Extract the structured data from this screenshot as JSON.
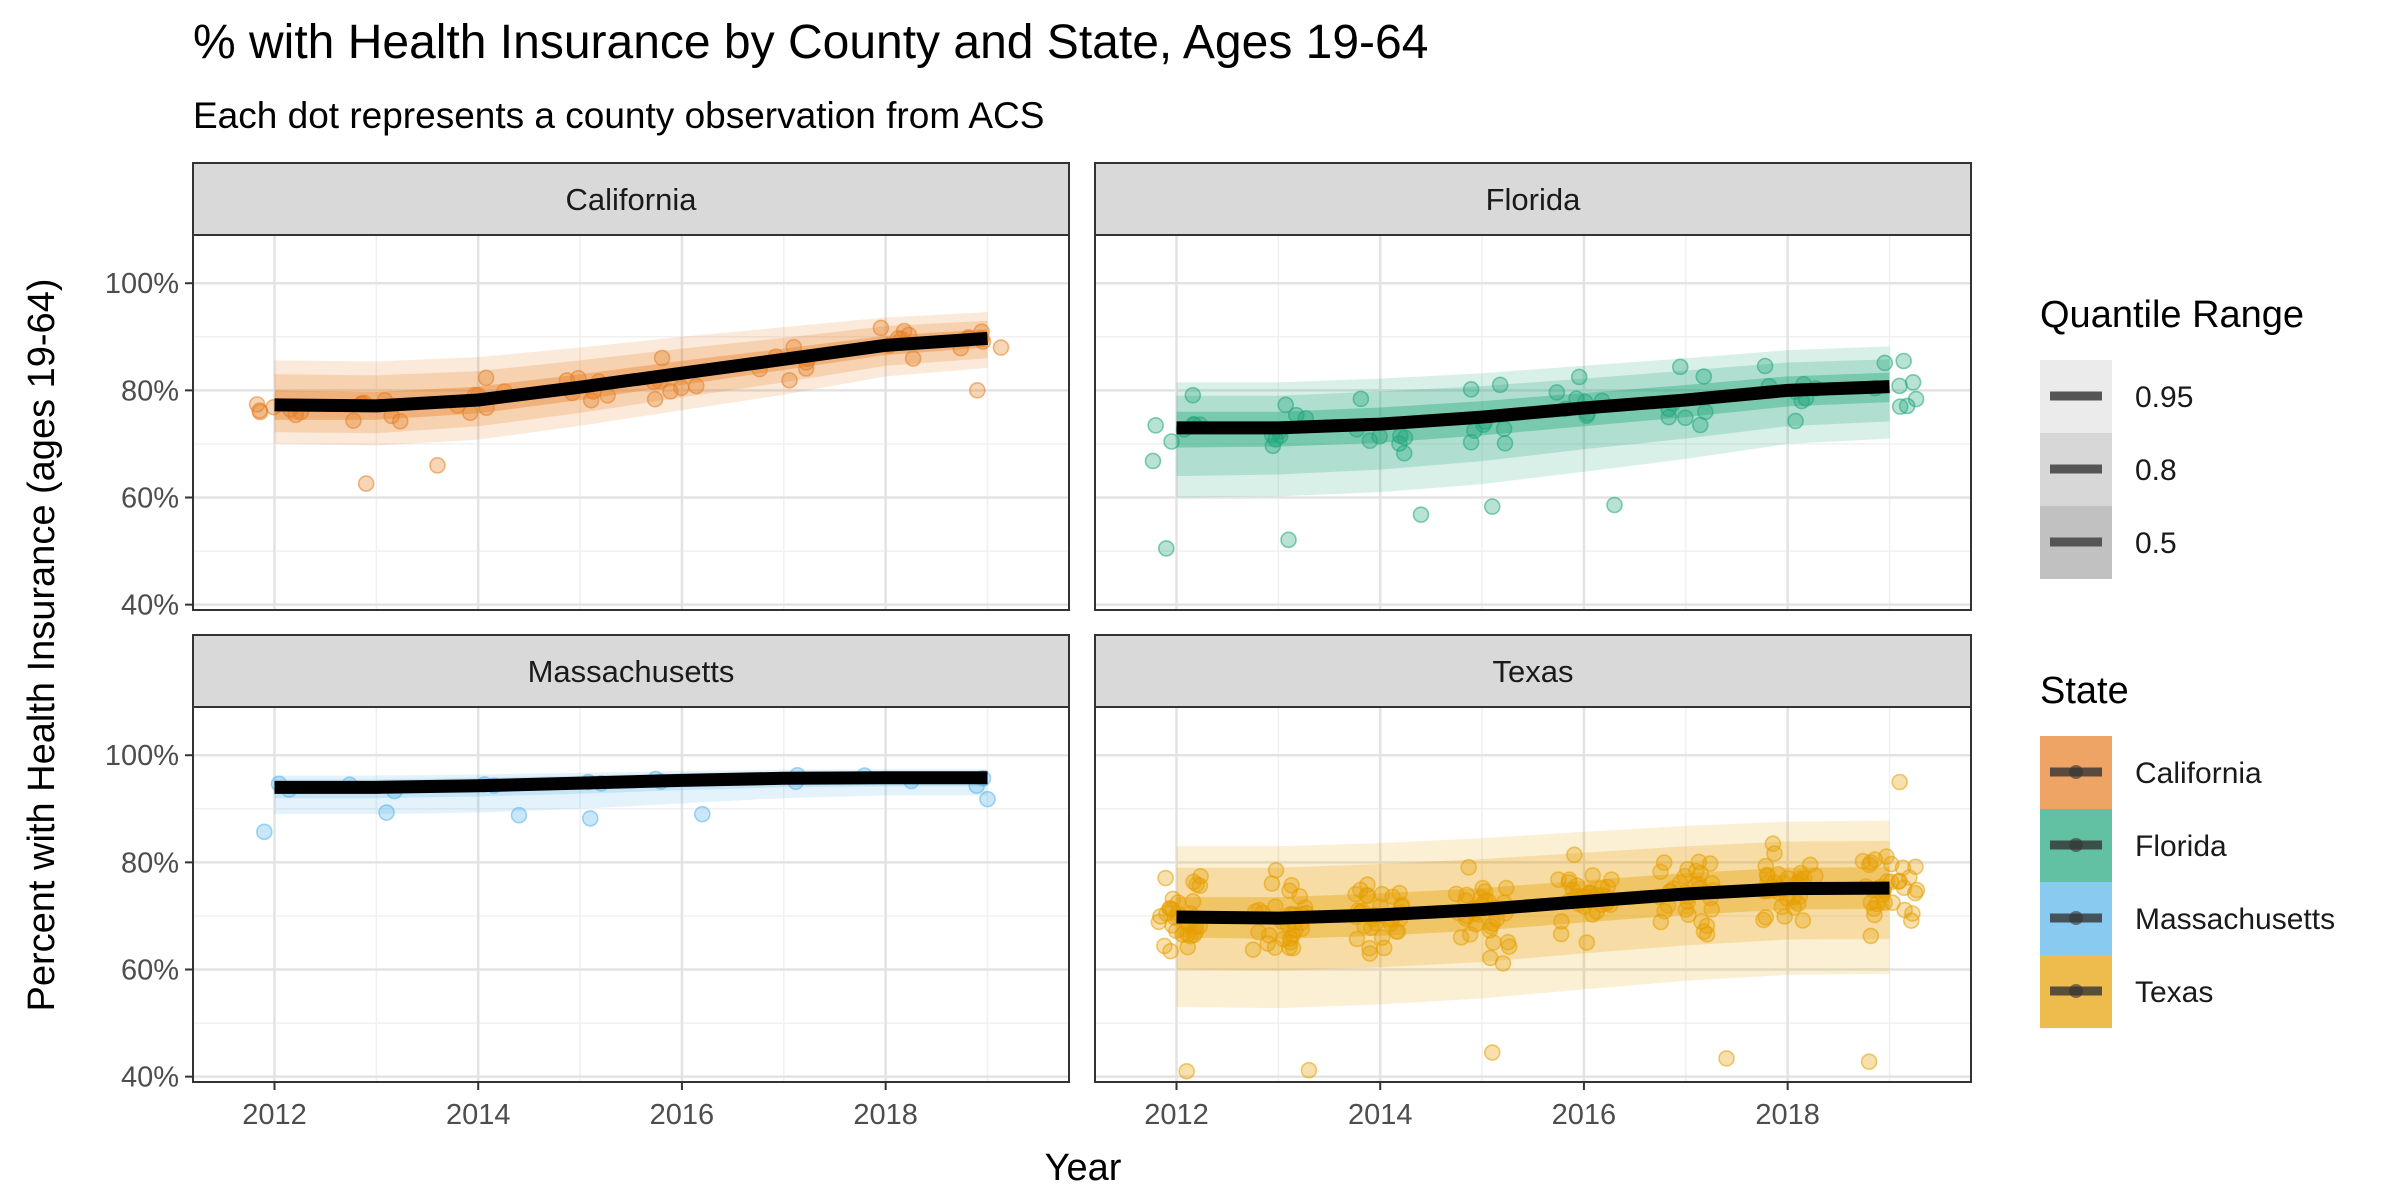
{
  "title": "% with Health Insurance by County and State, Ages 19-64",
  "subtitle": "Each dot represents a county observation from ACS",
  "chart_data": {
    "type": "scatter",
    "xlabel": "Year",
    "ylabel": "Percent with Health Insurance (ages 19-64)",
    "xlim": [
      2011.2,
      2019.8
    ],
    "ylim": [
      0.39,
      1.09
    ],
    "x_ticks": [
      2012,
      2014,
      2016,
      2018
    ],
    "x_tick_labels": [
      "2012",
      "2014",
      "2016",
      "2018"
    ],
    "y_ticks": [
      0.4,
      0.6,
      0.8,
      1.0
    ],
    "y_tick_labels": [
      "40%",
      "60%",
      "80%",
      "100%"
    ],
    "years": [
      2012,
      2013,
      2014,
      2015,
      2016,
      2017,
      2018,
      2019
    ],
    "grid": true,
    "legend_position": "right",
    "quantile_legend": {
      "title": "Quantile Range",
      "levels": [
        "0.95",
        "0.8",
        "0.5"
      ]
    },
    "state_legend": {
      "title": "State"
    },
    "panels": [
      {
        "name": "California",
        "color": "#E67E22",
        "median": [
          0.773,
          0.771,
          0.782,
          0.806,
          0.832,
          0.858,
          0.884,
          0.897
        ],
        "q50": [
          [
            0.745,
            0.8
          ],
          [
            0.745,
            0.797
          ],
          [
            0.757,
            0.807
          ],
          [
            0.782,
            0.83
          ],
          [
            0.81,
            0.855
          ],
          [
            0.838,
            0.878
          ],
          [
            0.866,
            0.902
          ],
          [
            0.88,
            0.914
          ]
        ],
        "q80": [
          [
            0.722,
            0.83
          ],
          [
            0.72,
            0.828
          ],
          [
            0.733,
            0.836
          ],
          [
            0.758,
            0.856
          ],
          [
            0.787,
            0.878
          ],
          [
            0.815,
            0.898
          ],
          [
            0.846,
            0.92
          ],
          [
            0.86,
            0.93
          ]
        ],
        "q95": [
          [
            0.7,
            0.856
          ],
          [
            0.697,
            0.854
          ],
          [
            0.708,
            0.862
          ],
          [
            0.734,
            0.88
          ],
          [
            0.763,
            0.9
          ],
          [
            0.792,
            0.918
          ],
          [
            0.826,
            0.936
          ],
          [
            0.842,
            0.946
          ]
        ],
        "point_count": 58,
        "point_spread": 0.04,
        "point_outliers": [
          [
            2012.9,
            0.626
          ],
          [
            2013.6,
            0.66
          ],
          [
            2018.9,
            0.8
          ]
        ]
      },
      {
        "name": "Florida",
        "color": "#1FA67A",
        "median": [
          0.73,
          0.73,
          0.737,
          0.75,
          0.767,
          0.782,
          0.8,
          0.807
        ],
        "q50": [
          [
            0.693,
            0.76
          ],
          [
            0.695,
            0.76
          ],
          [
            0.702,
            0.768
          ],
          [
            0.716,
            0.78
          ],
          [
            0.733,
            0.795
          ],
          [
            0.75,
            0.81
          ],
          [
            0.77,
            0.826
          ],
          [
            0.778,
            0.833
          ]
        ],
        "q80": [
          [
            0.64,
            0.79
          ],
          [
            0.643,
            0.79
          ],
          [
            0.652,
            0.798
          ],
          [
            0.668,
            0.808
          ],
          [
            0.69,
            0.822
          ],
          [
            0.71,
            0.837
          ],
          [
            0.733,
            0.852
          ],
          [
            0.742,
            0.858
          ]
        ],
        "q95": [
          [
            0.6,
            0.815
          ],
          [
            0.602,
            0.815
          ],
          [
            0.61,
            0.822
          ],
          [
            0.625,
            0.832
          ],
          [
            0.648,
            0.846
          ],
          [
            0.672,
            0.86
          ],
          [
            0.7,
            0.875
          ],
          [
            0.71,
            0.882
          ]
        ],
        "point_count": 60,
        "point_spread": 0.065,
        "point_outliers": [
          [
            2011.9,
            0.505
          ],
          [
            2013.1,
            0.521
          ],
          [
            2014.4,
            0.568
          ],
          [
            2015.1,
            0.583
          ],
          [
            2016.3,
            0.586
          ]
        ]
      },
      {
        "name": "Massachusetts",
        "color": "#56B4E9",
        "median": [
          0.94,
          0.94,
          0.943,
          0.948,
          0.953,
          0.957,
          0.958,
          0.958
        ],
        "q50": [
          [
            0.932,
            0.948
          ],
          [
            0.932,
            0.948
          ],
          [
            0.935,
            0.951
          ],
          [
            0.94,
            0.956
          ],
          [
            0.946,
            0.96
          ],
          [
            0.95,
            0.964
          ],
          [
            0.951,
            0.965
          ],
          [
            0.951,
            0.965
          ]
        ],
        "q80": [
          [
            0.92,
            0.955
          ],
          [
            0.92,
            0.955
          ],
          [
            0.923,
            0.958
          ],
          [
            0.928,
            0.962
          ],
          [
            0.935,
            0.966
          ],
          [
            0.94,
            0.969
          ],
          [
            0.942,
            0.97
          ],
          [
            0.942,
            0.97
          ]
        ],
        "q95": [
          [
            0.89,
            0.962
          ],
          [
            0.89,
            0.962
          ],
          [
            0.893,
            0.964
          ],
          [
            0.9,
            0.967
          ],
          [
            0.91,
            0.97
          ],
          [
            0.92,
            0.973
          ],
          [
            0.925,
            0.974
          ],
          [
            0.925,
            0.974
          ]
        ],
        "point_count": 14,
        "point_spread": 0.012,
        "point_outliers": [
          [
            2011.9,
            0.857
          ],
          [
            2013.1,
            0.893
          ],
          [
            2014.4,
            0.888
          ],
          [
            2015.1,
            0.882
          ],
          [
            2016.2,
            0.89
          ],
          [
            2019.0,
            0.918
          ]
        ]
      },
      {
        "name": "Texas",
        "color": "#E69F00",
        "median": [
          0.698,
          0.696,
          0.702,
          0.712,
          0.727,
          0.741,
          0.751,
          0.752
        ],
        "q50": [
          [
            0.66,
            0.735
          ],
          [
            0.657,
            0.735
          ],
          [
            0.663,
            0.742
          ],
          [
            0.673,
            0.752
          ],
          [
            0.688,
            0.766
          ],
          [
            0.702,
            0.78
          ],
          [
            0.712,
            0.79
          ],
          [
            0.713,
            0.791
          ]
        ],
        "q80": [
          [
            0.6,
            0.79
          ],
          [
            0.598,
            0.79
          ],
          [
            0.604,
            0.797
          ],
          [
            0.614,
            0.806
          ],
          [
            0.63,
            0.818
          ],
          [
            0.645,
            0.83
          ],
          [
            0.656,
            0.839
          ],
          [
            0.657,
            0.84
          ]
        ],
        "q95": [
          [
            0.53,
            0.83
          ],
          [
            0.528,
            0.83
          ],
          [
            0.535,
            0.836
          ],
          [
            0.546,
            0.845
          ],
          [
            0.563,
            0.857
          ],
          [
            0.579,
            0.868
          ],
          [
            0.59,
            0.876
          ],
          [
            0.592,
            0.878
          ]
        ],
        "point_count": 254,
        "point_spread": 0.07,
        "point_outliers": [
          [
            2012.1,
            0.41
          ],
          [
            2013.3,
            0.412
          ],
          [
            2015.1,
            0.445
          ],
          [
            2017.4,
            0.434
          ],
          [
            2018.8,
            0.428
          ],
          [
            2019.1,
            0.95
          ]
        ]
      }
    ]
  }
}
